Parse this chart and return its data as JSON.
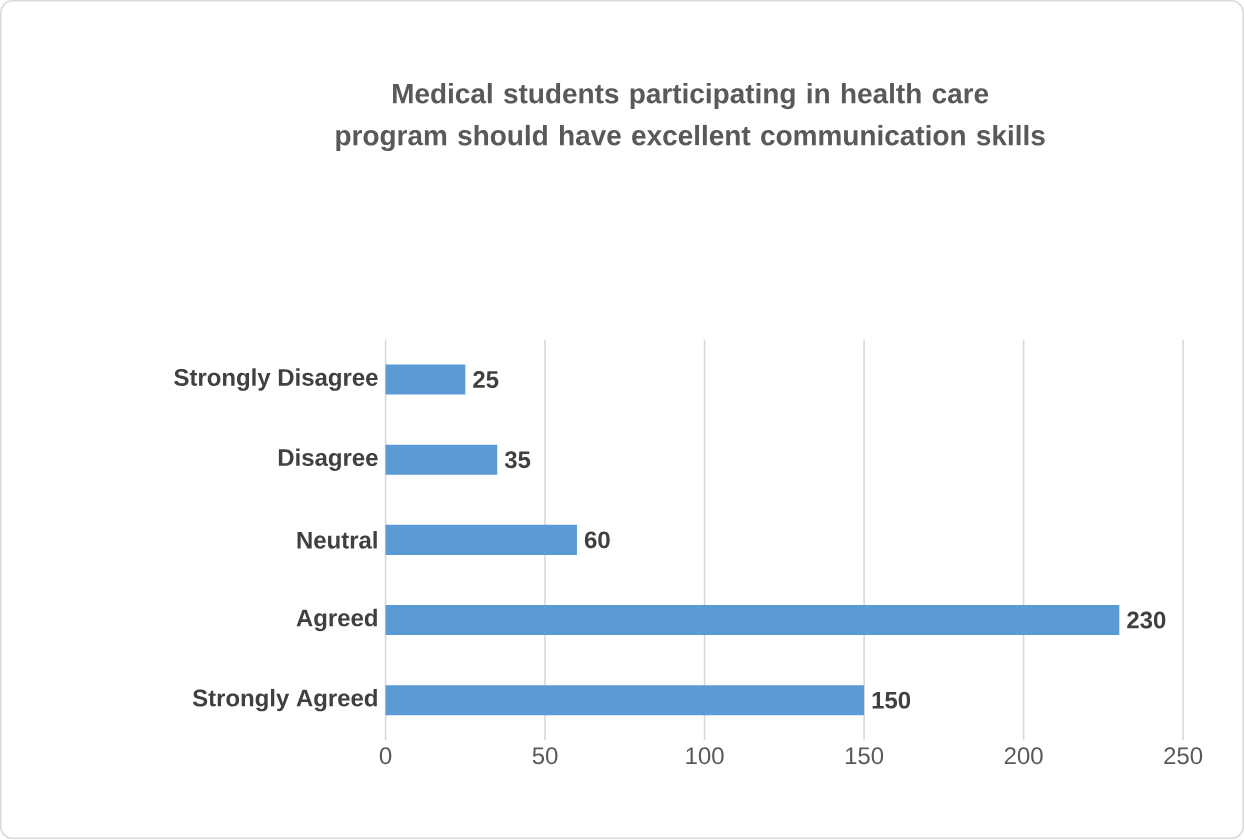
{
  "chart_data": {
    "type": "bar",
    "orientation": "horizontal",
    "title": "Medical students participating in health care program should have excellent communication skills",
    "categories": [
      "Strongly Disagree",
      "Disagree",
      "Neutral",
      "Agreed",
      "Strongly Agreed"
    ],
    "values": [
      25,
      35,
      60,
      230,
      150
    ],
    "color": "#5b9bd5",
    "xlim": [
      0,
      250
    ],
    "xticks": [
      0,
      50,
      100,
      150,
      200,
      250
    ],
    "grid": "x",
    "data_labels": true
  }
}
